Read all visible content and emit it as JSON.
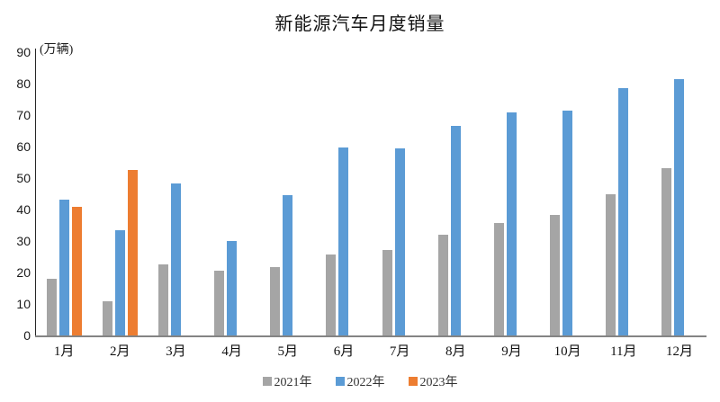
{
  "title": "新能源汽车月度销量",
  "y_axis_unit": "(万辆)",
  "chart_data": {
    "type": "bar",
    "title": "新能源汽车月度销量",
    "ylabel": "(万辆)",
    "xlabel": "",
    "categories": [
      "1月",
      "2月",
      "3月",
      "4月",
      "5月",
      "6月",
      "7月",
      "8月",
      "9月",
      "10月",
      "11月",
      "12月"
    ],
    "series": [
      {
        "name": "2021年",
        "color": "#A5A5A5",
        "values": [
          17.9,
          11.0,
          22.6,
          20.6,
          21.7,
          25.6,
          27.1,
          32.1,
          35.7,
          38.3,
          45.0,
          53.1
        ]
      },
      {
        "name": "2022年",
        "color": "#5B9BD5",
        "values": [
          43.1,
          33.4,
          48.4,
          29.9,
          44.7,
          59.6,
          59.3,
          66.6,
          70.8,
          71.4,
          78.6,
          81.4
        ]
      },
      {
        "name": "2023年",
        "color": "#ED7D31",
        "values": [
          40.8,
          52.5,
          null,
          null,
          null,
          null,
          null,
          null,
          null,
          null,
          null,
          null
        ]
      }
    ],
    "ylim": [
      0,
      90
    ],
    "yticks": [
      0,
      10,
      20,
      30,
      40,
      50,
      60,
      70,
      80,
      90
    ],
    "grid": false,
    "legend_position": "bottom"
  }
}
